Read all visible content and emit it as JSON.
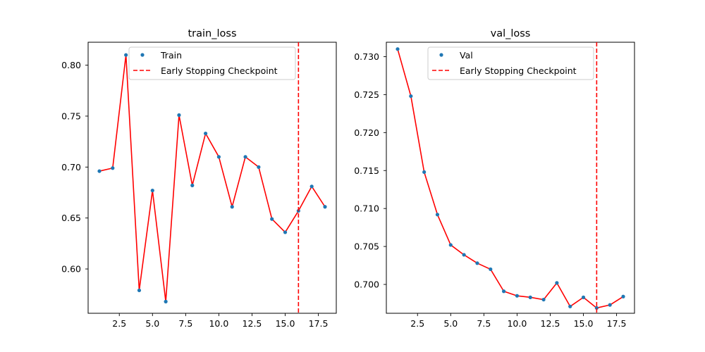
{
  "chart_data": [
    {
      "type": "line",
      "title": "train_loss",
      "xlabel": "",
      "ylabel": "",
      "xlim": [
        0.15,
        18.85
      ],
      "ylim": [
        0.5565,
        0.8225
      ],
      "xticks": [
        "2.5",
        "5.0",
        "7.5",
        "10.0",
        "12.5",
        "15.0",
        "17.5"
      ],
      "xtick_values": [
        2.5,
        5.0,
        7.5,
        10.0,
        12.5,
        15.0,
        17.5
      ],
      "yticks": [
        "0.60",
        "0.65",
        "0.70",
        "0.75",
        "0.80"
      ],
      "ytick_values": [
        0.6,
        0.65,
        0.7,
        0.75,
        0.8
      ],
      "grid": false,
      "legend_position": "upper-center",
      "series": [
        {
          "name": "Train",
          "kind": "points",
          "color": "#1f77b4",
          "x": [
            1,
            2,
            3,
            4,
            5,
            6,
            7,
            8,
            9,
            10,
            11,
            12,
            13,
            14,
            15,
            16,
            17,
            18
          ],
          "y": [
            0.696,
            0.699,
            0.81,
            0.579,
            0.677,
            0.568,
            0.751,
            0.682,
            0.733,
            0.71,
            0.661,
            0.71,
            0.7,
            0.649,
            0.636,
            0.657,
            0.681,
            0.661
          ]
        },
        {
          "name": "Early Stopping Checkpoint",
          "kind": "vline",
          "color": "#ff0000",
          "x": 16
        }
      ],
      "trend_color": "#ff0000"
    },
    {
      "type": "line",
      "title": "val_loss",
      "xlabel": "",
      "ylabel": "",
      "xlim": [
        0.15,
        18.85
      ],
      "ylim": [
        0.6962,
        0.7319
      ],
      "xticks": [
        "2.5",
        "5.0",
        "7.5",
        "10.0",
        "12.5",
        "15.0",
        "17.5"
      ],
      "xtick_values": [
        2.5,
        5.0,
        7.5,
        10.0,
        12.5,
        15.0,
        17.5
      ],
      "yticks": [
        "0.700",
        "0.705",
        "0.710",
        "0.715",
        "0.720",
        "0.725",
        "0.730"
      ],
      "ytick_values": [
        0.7,
        0.705,
        0.71,
        0.715,
        0.72,
        0.725,
        0.73
      ],
      "grid": false,
      "legend_position": "upper-center",
      "series": [
        {
          "name": "Val",
          "kind": "points",
          "color": "#1f77b4",
          "x": [
            1,
            2,
            3,
            4,
            5,
            6,
            7,
            8,
            9,
            10,
            11,
            12,
            13,
            14,
            15,
            16,
            17,
            18
          ],
          "y": [
            0.731,
            0.7248,
            0.7148,
            0.7092,
            0.7052,
            0.7039,
            0.7028,
            0.702,
            0.6991,
            0.6985,
            0.6983,
            0.698,
            0.7002,
            0.6971,
            0.6983,
            0.6969,
            0.6973,
            0.6984
          ]
        },
        {
          "name": "Early Stopping Checkpoint",
          "kind": "vline",
          "color": "#ff0000",
          "x": 16
        }
      ],
      "trend_color": "#ff0000"
    }
  ]
}
